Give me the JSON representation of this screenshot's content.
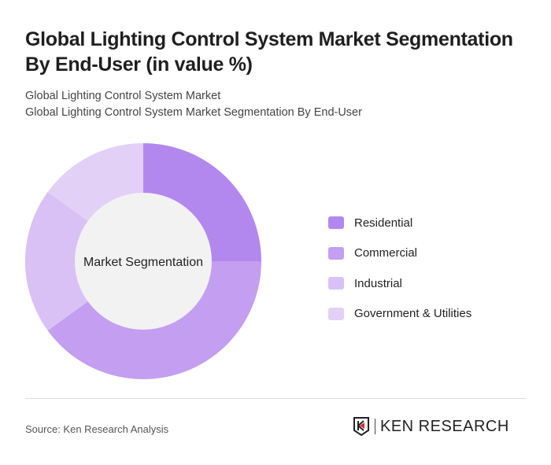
{
  "title": "Global Lighting Control System Market Segmentation By End-User (in value %)",
  "subtitle1": "Global Lighting Control System Market",
  "subtitle2": "Global Lighting Control System Market Segmentation By End-User",
  "chart_data": {
    "type": "pie",
    "variant": "donut",
    "center_label": "Market Segmentation",
    "legend_position": "right",
    "slices": [
      {
        "name": "Residential",
        "value": 25,
        "color": "#b388ee"
      },
      {
        "name": "Commercial",
        "value": 40,
        "color": "#c49ef0"
      },
      {
        "name": "Industrial",
        "value": 20,
        "color": "#d9c1f5"
      },
      {
        "name": "Government & Utilities",
        "value": 15,
        "color": "#e3d0f6"
      }
    ]
  },
  "source": "Source: Ken Research Analysis",
  "logo_text": "KEN RESEARCH"
}
